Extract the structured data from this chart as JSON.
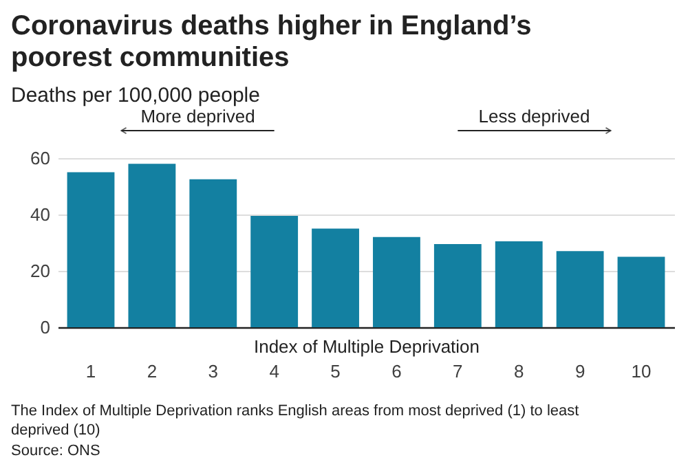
{
  "chart_data": {
    "type": "bar",
    "title": "Coronavirus deaths higher in England’s poorest communities",
    "subtitle": "Deaths per 100,000 people",
    "xlabel": "Index of Multiple Deprivation",
    "categories": [
      "1",
      "2",
      "3",
      "4",
      "5",
      "6",
      "7",
      "8",
      "9",
      "10"
    ],
    "values": [
      55,
      58,
      52.5,
      39.5,
      35,
      32,
      29.5,
      30.5,
      27,
      25
    ],
    "color": "#1380a1",
    "ylim": [
      0,
      60
    ],
    "yticks": [
      0,
      20,
      40,
      60
    ],
    "grid": "y",
    "annotations": [
      "More deprived",
      "Less deprived",
      "The Index of Multiple Deprivation ranks English areas from most deprived (1) to least deprived (10)",
      "Source: ONS"
    ]
  }
}
